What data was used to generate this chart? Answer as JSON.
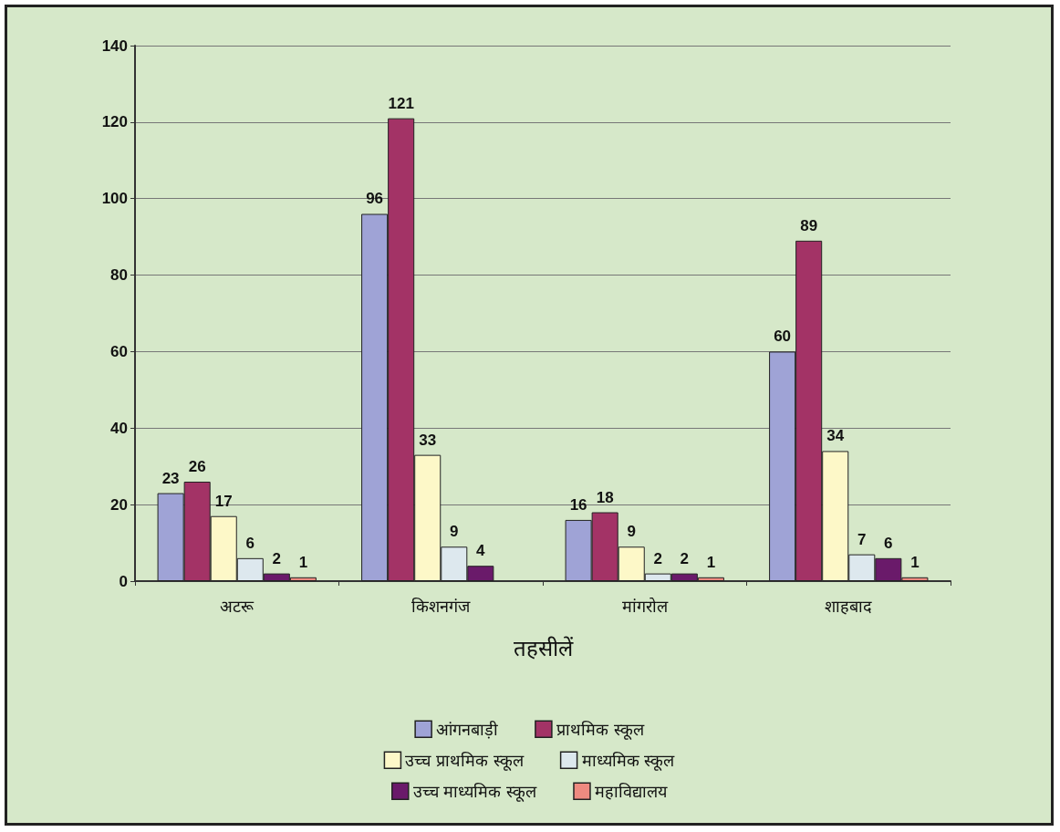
{
  "chart_data": {
    "type": "bar",
    "xlabel": "तहसीलें",
    "categories": [
      "अटरू",
      "किशनगंज",
      "मांगरोल",
      "शाहबाद"
    ],
    "series": [
      {
        "name": "आंगनबाड़ी",
        "color": "#9fa3d6",
        "values": [
          23,
          96,
          16,
          60
        ]
      },
      {
        "name": "प्राथमिक स्कूल",
        "color": "#a33366",
        "values": [
          26,
          121,
          18,
          89
        ]
      },
      {
        "name": "उच्च प्राथमिक स्कूल",
        "color": "#fdf8c8",
        "values": [
          17,
          33,
          9,
          34
        ]
      },
      {
        "name": "माध्यमिक स्कूल",
        "color": "#dde8ee",
        "values": [
          6,
          9,
          2,
          7
        ]
      },
      {
        "name": "उच्च माध्यमिक स्कूल",
        "color": "#6a1a6a",
        "values": [
          2,
          4,
          2,
          6
        ]
      },
      {
        "name": "महाविद्यालय",
        "color": "#ee8a80",
        "values": [
          1,
          null,
          1,
          1
        ]
      }
    ],
    "ylim": [
      0,
      140
    ],
    "yticks": [
      0,
      20,
      40,
      60,
      80,
      100,
      120,
      140
    ],
    "grid": "y",
    "legend": "bottom",
    "data_labels": true
  }
}
